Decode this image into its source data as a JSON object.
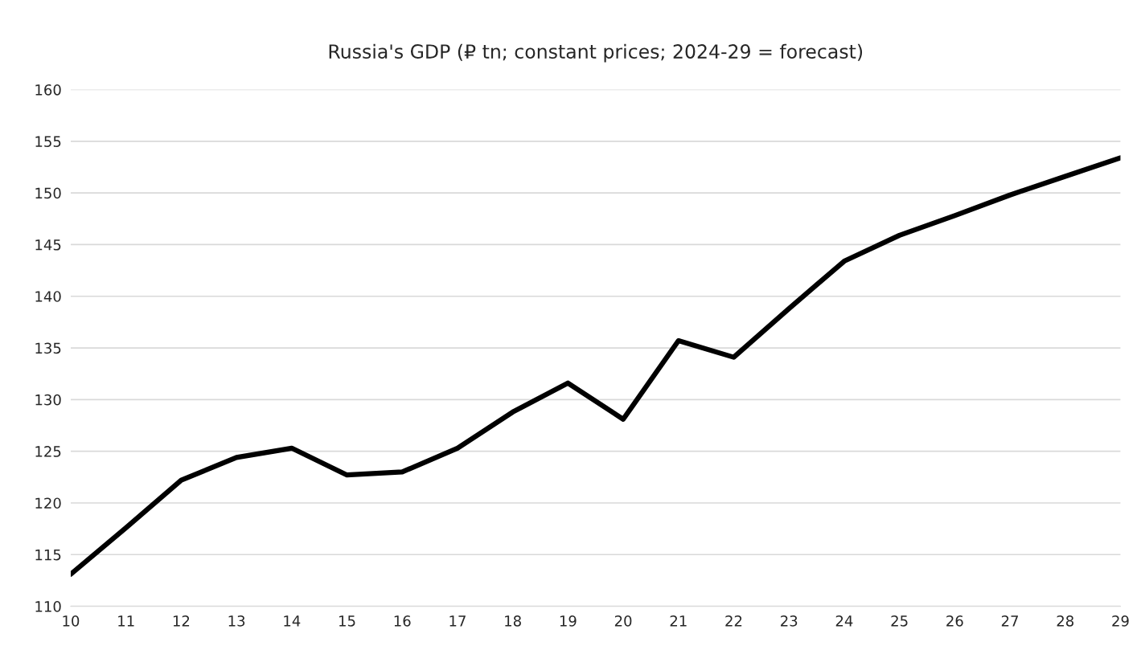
{
  "chart_data": {
    "type": "line",
    "title": "Russia's GDP (₽ tn; constant prices; 2024-29 = forecast)",
    "categories": [
      "10",
      "11",
      "12",
      "13",
      "14",
      "15",
      "16",
      "17",
      "18",
      "19",
      "20",
      "21",
      "22",
      "23",
      "24",
      "25",
      "26",
      "27",
      "28",
      "29"
    ],
    "series": [
      {
        "color": "#000000",
        "values": [
          113.1,
          117.6,
          122.2,
          124.4,
          125.3,
          122.7,
          123.0,
          125.3,
          128.8,
          131.6,
          128.1,
          135.7,
          134.1,
          138.8,
          143.4,
          145.9,
          147.8,
          149.8,
          151.6,
          153.4
        ]
      }
    ],
    "ylim": [
      110,
      160
    ],
    "yticks": [
      110,
      115,
      120,
      125,
      130,
      135,
      140,
      145,
      150,
      155,
      160
    ],
    "grid": "y",
    "marker": "none",
    "line_style": "solid"
  }
}
